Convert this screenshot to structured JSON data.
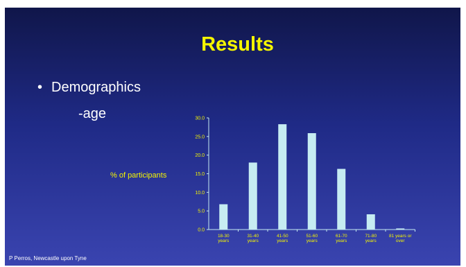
{
  "slide": {
    "title": "Results",
    "bullet_marker": "•",
    "bullet": "Demographics",
    "subbullet": "-age",
    "footer": "P Perros, Newcastle upon Tyne"
  },
  "colors": {
    "title": "#f5f500",
    "bar": "#c6ecf2",
    "tick_label": "#f5f500",
    "axis": "#c6ecf2",
    "background_top": "#10164a",
    "background_bottom": "#3a44b0"
  },
  "chart_data": {
    "type": "bar",
    "title": "",
    "ylabel": "% of participants",
    "xlabel": "",
    "categories": [
      [
        "18-30",
        "years"
      ],
      [
        "31-40",
        "years"
      ],
      [
        "41-50",
        "years"
      ],
      [
        "51-60",
        "years"
      ],
      [
        "61-70",
        "years"
      ],
      [
        "71-80",
        "years"
      ],
      [
        "81 years or",
        "over"
      ]
    ],
    "values": [
      6.8,
      18.0,
      28.3,
      25.9,
      16.3,
      4.1,
      0.3
    ],
    "ylim": [
      0,
      30
    ],
    "yticks": [
      "0.0",
      "5.0",
      "10.0",
      "15.0",
      "20.0",
      "25.0",
      "30.0"
    ],
    "grid": false,
    "legend": "none"
  }
}
